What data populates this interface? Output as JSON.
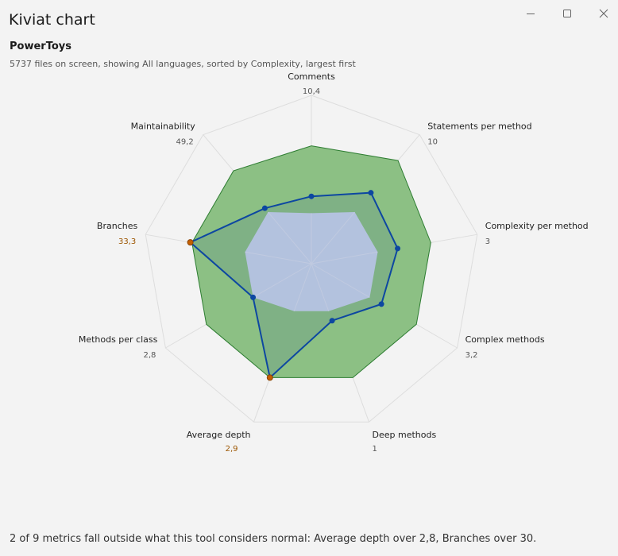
{
  "window": {
    "title": "Kiviat chart",
    "controls": {
      "minimize_icon": "minimize-icon",
      "maximize_icon": "maximize-icon",
      "close_icon": "close-icon"
    }
  },
  "header": {
    "project": "PowerToys",
    "summary": "5737 files on screen, showing All languages, sorted by Complexity, largest first"
  },
  "footer": {
    "note": "2 of 9 metrics fall outside what this tool considers normal: Average depth over 2,8, Branches over 30."
  },
  "chart_data": {
    "type": "radar",
    "axes": [
      {
        "label": "Comments",
        "value_text": "10,4",
        "value": 0.4,
        "normal_min": 0.3,
        "normal_max": 0.7,
        "flagged": false
      },
      {
        "label": "Statements per method",
        "value_text": "10",
        "value": 0.55,
        "normal_min": 0.4,
        "normal_max": 0.8,
        "flagged": false
      },
      {
        "label": "Complexity per method",
        "value_text": "3",
        "value": 0.52,
        "normal_min": 0.4,
        "normal_max": 0.72,
        "flagged": false
      },
      {
        "label": "Complex methods",
        "value_text": "3,2",
        "value": 0.48,
        "normal_min": 0.4,
        "normal_max": 0.72,
        "flagged": false
      },
      {
        "label": "Deep methods",
        "value_text": "1",
        "value": 0.36,
        "normal_min": 0.3,
        "normal_max": 0.72,
        "flagged": false
      },
      {
        "label": "Average depth",
        "value_text": "2,9",
        "value": 0.72,
        "normal_min": 0.3,
        "normal_max": 0.72,
        "flagged": true
      },
      {
        "label": "Methods per class",
        "value_text": "2,8",
        "value": 0.4,
        "normal_min": 0.4,
        "normal_max": 0.72,
        "flagged": false
      },
      {
        "label": "Branches",
        "value_text": "33,3",
        "value": 0.73,
        "normal_min": 0.4,
        "normal_max": 0.72,
        "flagged": true
      },
      {
        "label": "Maintainability",
        "value_text": "49,2",
        "value": 0.43,
        "normal_min": 0.4,
        "normal_max": 0.72,
        "flagged": false
      }
    ],
    "colors": {
      "normal_band_fill": "#8cc084",
      "normal_band_stroke": "#2e7d32",
      "inner_fill": "#c8d3ea",
      "value_line": "#0d47a1",
      "value_point": "#0d47a1",
      "flagged_point": "#c65f00",
      "flagged_text": "#9c5500",
      "grid": "#dddddd",
      "label_text": "#222222",
      "value_text": "#555555"
    }
  }
}
